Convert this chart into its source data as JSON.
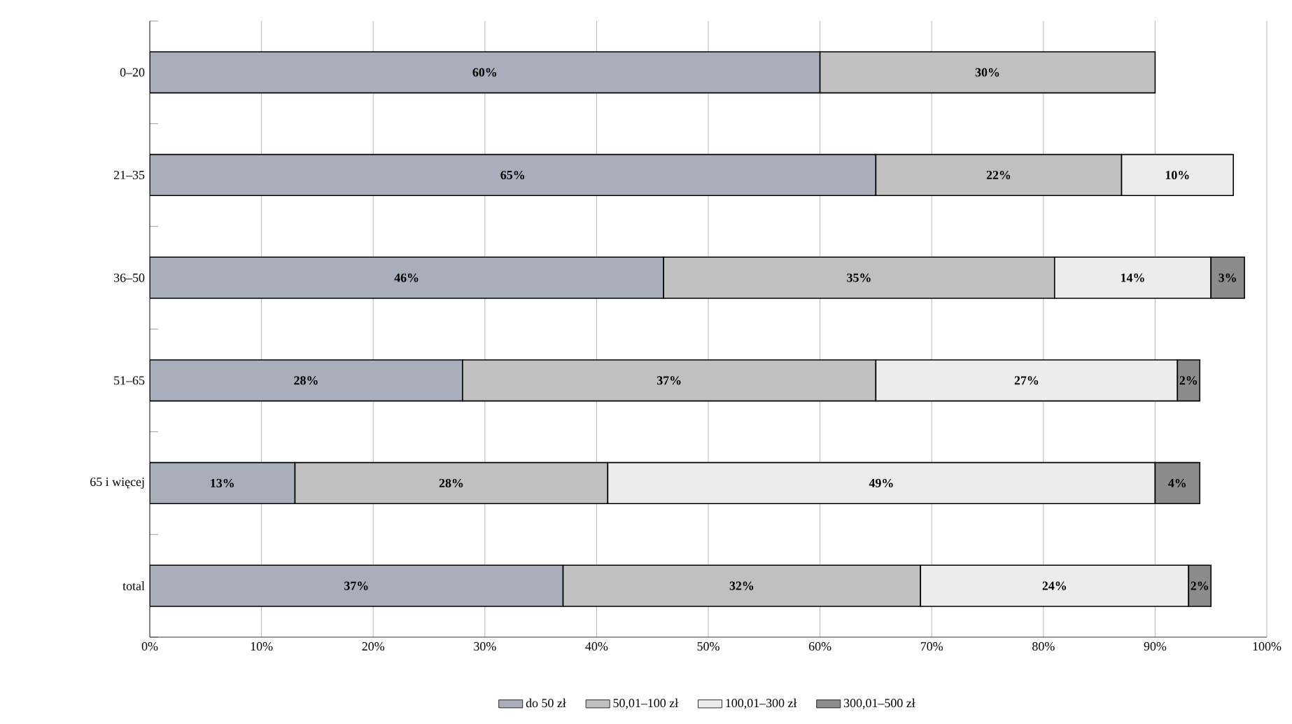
{
  "chart_data": {
    "type": "bar",
    "orientation": "horizontal",
    "stacked": true,
    "categories": [
      "0–20",
      "21–35",
      "36–50",
      "51–65",
      "65 i więcej",
      "total"
    ],
    "series": [
      {
        "name": "do 50 zł",
        "color": "#a9aebc",
        "values": [
          60,
          65,
          46,
          28,
          13,
          37
        ],
        "value_labels": [
          "60%",
          "65%",
          "46%",
          "28%",
          "13%",
          "37%"
        ]
      },
      {
        "name": "50,01–100 zł",
        "color": "#c0c0c0",
        "values": [
          30,
          22,
          35,
          37,
          28,
          32
        ],
        "value_labels": [
          "30%",
          "22%",
          "35%",
          "37%",
          "28%",
          "32%"
        ]
      },
      {
        "name": "100,01–300 zł",
        "color": "#ececec",
        "values": [
          null,
          10,
          14,
          27,
          49,
          24
        ],
        "value_labels": [
          null,
          "10%",
          "14%",
          "27%",
          "49%",
          "24%"
        ]
      },
      {
        "name": "300,01–500 zł",
        "color": "#8c8c8c",
        "values": [
          null,
          null,
          3,
          2,
          4,
          2
        ],
        "value_labels": [
          null,
          null,
          "3%",
          "2%",
          "4%",
          "2%"
        ]
      }
    ],
    "xlim": [
      0,
      100
    ],
    "xticks": [
      {
        "value": 0,
        "label": "0%"
      },
      {
        "value": 10,
        "label": "10%"
      },
      {
        "value": 20,
        "label": "20%"
      },
      {
        "value": 30,
        "label": "30%"
      },
      {
        "value": 40,
        "label": "40%"
      },
      {
        "value": 50,
        "label": "50%"
      },
      {
        "value": 60,
        "label": "60%"
      },
      {
        "value": 70,
        "label": "70%"
      },
      {
        "value": 80,
        "label": "80%"
      },
      {
        "value": 90,
        "label": "90%"
      },
      {
        "value": 100,
        "label": "100%"
      }
    ],
    "grid": "x",
    "legend": "bottom"
  }
}
